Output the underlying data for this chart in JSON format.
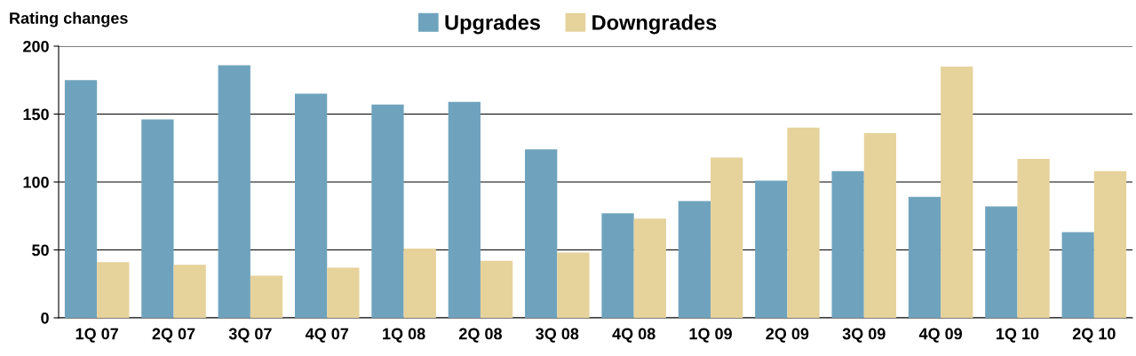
{
  "chart_data": {
    "type": "bar",
    "ylabel": "Rating changes",
    "categories": [
      "1Q 07",
      "2Q 07",
      "3Q 07",
      "4Q 07",
      "1Q 08",
      "2Q 08",
      "3Q 08",
      "4Q 08",
      "1Q 09",
      "2Q 09",
      "3Q 09",
      "4Q 09",
      "1Q 10",
      "2Q 10"
    ],
    "series": [
      {
        "name": "Upgrades",
        "color": "#6fa3bd",
        "values": [
          175,
          146,
          186,
          165,
          157,
          159,
          124,
          77,
          86,
          101,
          108,
          89,
          82,
          63
        ]
      },
      {
        "name": "Downgrades",
        "color": "#e6d29b",
        "values": [
          41,
          39,
          31,
          37,
          51,
          42,
          48,
          73,
          118,
          140,
          136,
          185,
          117,
          108
        ]
      }
    ],
    "ylim": [
      0,
      200
    ],
    "yticks": [
      0,
      50,
      100,
      150,
      200
    ],
    "grid": "y",
    "legend": "top"
  }
}
